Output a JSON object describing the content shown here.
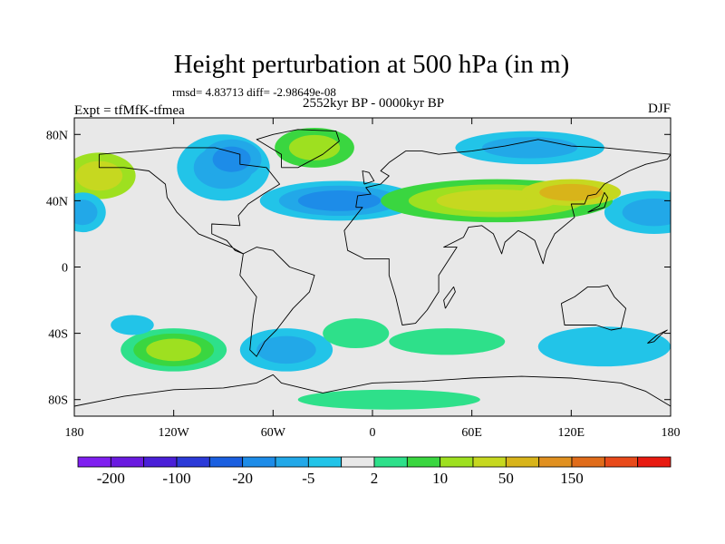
{
  "chart_data": {
    "type": "heatmap",
    "title": "Height perturbation at 500 hPa (in m)",
    "stats_line": "rmsd= 4.83713 diff= -2.98649e-08",
    "subtitle": "2552kyr BP - 0000kyr BP",
    "experiment": "Expt = tfMfK-tfmea",
    "season": "DJF",
    "xlim": [
      -180,
      180
    ],
    "ylim": [
      -90,
      90
    ],
    "x_ticks": [
      {
        "value": -180,
        "label": "180"
      },
      {
        "value": -120,
        "label": "120W"
      },
      {
        "value": -60,
        "label": "60W"
      },
      {
        "value": 0,
        "label": "0"
      },
      {
        "value": 60,
        "label": "60E"
      },
      {
        "value": 120,
        "label": "120E"
      },
      {
        "value": 180,
        "label": "180"
      }
    ],
    "y_ticks": [
      {
        "value": 80,
        "label": "80N"
      },
      {
        "value": 40,
        "label": "40N"
      },
      {
        "value": 0,
        "label": "0"
      },
      {
        "value": -40,
        "label": "40S"
      },
      {
        "value": -80,
        "label": "80S"
      }
    ],
    "colorbar": {
      "colors": [
        "#7f1ff0",
        "#6a1ae0",
        "#4a1fd8",
        "#2b3ad8",
        "#1a5fe0",
        "#1d8ce8",
        "#22a8e8",
        "#22c4e8",
        "#e8e8e8",
        "#2ee08a",
        "#3ad640",
        "#9ee020",
        "#c6d820",
        "#d8b41a",
        "#e09020",
        "#e06c1a",
        "#e84a1a",
        "#e81a10"
      ],
      "tick_labels": [
        {
          "index": 1,
          "label": "-200"
        },
        {
          "index": 3,
          "label": "-100"
        },
        {
          "index": 5,
          "label": "-20"
        },
        {
          "index": 7,
          "label": "-5"
        },
        {
          "index": 9,
          "label": "2"
        },
        {
          "index": 11,
          "label": "10"
        },
        {
          "index": 13,
          "label": "50"
        },
        {
          "index": 15,
          "label": "150"
        }
      ]
    },
    "field_anomalies": [
      {
        "name": "n-pacific-east",
        "lon": -165,
        "lat": 55,
        "rx": 22,
        "ry": 14,
        "levels": [
          11,
          12
        ]
      },
      {
        "name": "n-pacific-west-low",
        "lon": 170,
        "lat": 33,
        "rx": 30,
        "ry": 13,
        "levels": [
          7,
          6
        ]
      },
      {
        "name": "n-pacific-dateline-low",
        "lon": -175,
        "lat": 33,
        "rx": 14,
        "ry": 12,
        "levels": [
          7,
          6
        ]
      },
      {
        "name": "north-america-low",
        "lon": -90,
        "lat": 60,
        "rx": 28,
        "ry": 20,
        "levels": [
          7,
          6
        ]
      },
      {
        "name": "canada-low-core",
        "lon": -85,
        "lat": 65,
        "rx": 18,
        "ry": 12,
        "levels": [
          6,
          5
        ]
      },
      {
        "name": "greenland-high",
        "lon": -35,
        "lat": 72,
        "rx": 24,
        "ry": 12,
        "levels": [
          10,
          11
        ]
      },
      {
        "name": "atlantic-low",
        "lon": -20,
        "lat": 40,
        "rx": 48,
        "ry": 12,
        "levels": [
          7,
          6,
          5
        ]
      },
      {
        "name": "arctic-siberia-low",
        "lon": 95,
        "lat": 72,
        "rx": 45,
        "ry": 10,
        "levels": [
          7,
          6
        ]
      },
      {
        "name": "eurasia-high",
        "lon": 75,
        "lat": 40,
        "rx": 70,
        "ry": 13,
        "levels": [
          10,
          11,
          12
        ]
      },
      {
        "name": "asia-high-core",
        "lon": 120,
        "lat": 45,
        "rx": 30,
        "ry": 8,
        "levels": [
          12,
          13
        ]
      },
      {
        "name": "s-pacific-west-high",
        "lon": -120,
        "lat": -50,
        "rx": 32,
        "ry": 13,
        "levels": [
          9,
          10,
          11
        ]
      },
      {
        "name": "s-atlantic-low",
        "lon": -52,
        "lat": -50,
        "rx": 28,
        "ry": 13,
        "levels": [
          7,
          6
        ]
      },
      {
        "name": "s-atlantic-high",
        "lon": -10,
        "lat": -40,
        "rx": 20,
        "ry": 9,
        "levels": [
          9
        ]
      },
      {
        "name": "s-indian-high",
        "lon": 45,
        "lat": -45,
        "rx": 35,
        "ry": 8,
        "levels": [
          9
        ]
      },
      {
        "name": "s-indian-low",
        "lon": 140,
        "lat": -48,
        "rx": 40,
        "ry": 12,
        "levels": [
          7
        ]
      },
      {
        "name": "s-pacific-small-high",
        "lon": 10,
        "lat": -80,
        "rx": 55,
        "ry": 6,
        "levels": [
          9
        ]
      },
      {
        "name": "tropical-pacific-low",
        "lon": -145,
        "lat": -35,
        "rx": 13,
        "ry": 6,
        "levels": [
          7
        ]
      }
    ],
    "land_outlines": [
      {
        "name": "north-america",
        "points": [
          [
            -165,
            68
          ],
          [
            -140,
            70
          ],
          [
            -120,
            72
          ],
          [
            -95,
            72
          ],
          [
            -80,
            68
          ],
          [
            -80,
            62
          ],
          [
            -64,
            60
          ],
          [
            -56,
            50
          ],
          [
            -66,
            44
          ],
          [
            -75,
            38
          ],
          [
            -81,
            31
          ],
          [
            -80,
            25
          ],
          [
            -97,
            26
          ],
          [
            -97,
            20
          ],
          [
            -88,
            16
          ],
          [
            -83,
            10
          ],
          [
            -78,
            8
          ],
          [
            -85,
            12
          ],
          [
            -95,
            16
          ],
          [
            -105,
            20
          ],
          [
            -110,
            25
          ],
          [
            -118,
            33
          ],
          [
            -124,
            42
          ],
          [
            -125,
            50
          ],
          [
            -135,
            58
          ],
          [
            -150,
            60
          ],
          [
            -165,
            60
          ],
          [
            -165,
            68
          ]
        ]
      },
      {
        "name": "greenland",
        "points": [
          [
            -55,
            60
          ],
          [
            -45,
            60
          ],
          [
            -30,
            68
          ],
          [
            -20,
            76
          ],
          [
            -22,
            82
          ],
          [
            -45,
            83
          ],
          [
            -60,
            80
          ],
          [
            -70,
            77
          ],
          [
            -55,
            68
          ],
          [
            -55,
            60
          ]
        ]
      },
      {
        "name": "south-america",
        "points": [
          [
            -78,
            8
          ],
          [
            -70,
            12
          ],
          [
            -60,
            10
          ],
          [
            -50,
            0
          ],
          [
            -35,
            -5
          ],
          [
            -38,
            -15
          ],
          [
            -48,
            -25
          ],
          [
            -58,
            -38
          ],
          [
            -65,
            -45
          ],
          [
            -70,
            -54
          ],
          [
            -74,
            -50
          ],
          [
            -72,
            -30
          ],
          [
            -70,
            -18
          ],
          [
            -80,
            -5
          ],
          [
            -78,
            8
          ]
        ]
      },
      {
        "name": "eurasia-africa",
        "points": [
          [
            -10,
            36
          ],
          [
            -6,
            36
          ],
          [
            -17,
            22
          ],
          [
            -15,
            10
          ],
          [
            -5,
            5
          ],
          [
            10,
            5
          ],
          [
            10,
            -5
          ],
          [
            14,
            -18
          ],
          [
            18,
            -35
          ],
          [
            26,
            -34
          ],
          [
            33,
            -26
          ],
          [
            40,
            -15
          ],
          [
            40,
            -5
          ],
          [
            51,
            12
          ],
          [
            43,
            12
          ],
          [
            55,
            18
          ],
          [
            58,
            24
          ],
          [
            66,
            25
          ],
          [
            73,
            20
          ],
          [
            78,
            8
          ],
          [
            80,
            15
          ],
          [
            88,
            22
          ],
          [
            92,
            20
          ],
          [
            98,
            16
          ],
          [
            103,
            2
          ],
          [
            105,
            10
          ],
          [
            110,
            20
          ],
          [
            122,
            30
          ],
          [
            120,
            38
          ],
          [
            128,
            38
          ],
          [
            130,
            43
          ],
          [
            135,
            44
          ],
          [
            140,
            50
          ],
          [
            155,
            58
          ],
          [
            165,
            62
          ],
          [
            178,
            65
          ],
          [
            180,
            68
          ],
          [
            160,
            70
          ],
          [
            140,
            72
          ],
          [
            120,
            73
          ],
          [
            100,
            77
          ],
          [
            80,
            73
          ],
          [
            60,
            70
          ],
          [
            40,
            68
          ],
          [
            30,
            70
          ],
          [
            20,
            70
          ],
          [
            10,
            63
          ],
          [
            5,
            58
          ],
          [
            10,
            55
          ],
          [
            5,
            50
          ],
          [
            -4,
            48
          ],
          [
            -1,
            44
          ],
          [
            -9,
            43
          ],
          [
            -10,
            36
          ]
        ]
      },
      {
        "name": "australia",
        "points": [
          [
            114,
            -22
          ],
          [
            122,
            -18
          ],
          [
            130,
            -12
          ],
          [
            137,
            -12
          ],
          [
            142,
            -11
          ],
          [
            146,
            -18
          ],
          [
            153,
            -25
          ],
          [
            150,
            -37
          ],
          [
            144,
            -38
          ],
          [
            135,
            -35
          ],
          [
            116,
            -35
          ],
          [
            114,
            -22
          ]
        ]
      },
      {
        "name": "antarctica",
        "points": [
          [
            -180,
            -84
          ],
          [
            -150,
            -78
          ],
          [
            -120,
            -74
          ],
          [
            -90,
            -73
          ],
          [
            -70,
            -70
          ],
          [
            -60,
            -65
          ],
          [
            -55,
            -70
          ],
          [
            -30,
            -76
          ],
          [
            0,
            -70
          ],
          [
            30,
            -69
          ],
          [
            60,
            -67
          ],
          [
            90,
            -66
          ],
          [
            120,
            -67
          ],
          [
            150,
            -70
          ],
          [
            165,
            -75
          ],
          [
            180,
            -84
          ]
        ]
      },
      {
        "name": "british-isles",
        "points": [
          [
            -5,
            50
          ],
          [
            1,
            52
          ],
          [
            -2,
            57
          ],
          [
            -6,
            58
          ],
          [
            -5,
            50
          ]
        ]
      },
      {
        "name": "madagascar",
        "points": [
          [
            44,
            -25
          ],
          [
            50,
            -15
          ],
          [
            49,
            -12
          ],
          [
            43,
            -20
          ],
          [
            44,
            -25
          ]
        ]
      },
      {
        "name": "japan",
        "points": [
          [
            130,
            33
          ],
          [
            140,
            36
          ],
          [
            142,
            42
          ],
          [
            140,
            45
          ],
          [
            137,
            37
          ],
          [
            130,
            33
          ]
        ]
      },
      {
        "name": "new-zealand",
        "points": [
          [
            166,
            -46
          ],
          [
            172,
            -41
          ],
          [
            178,
            -38
          ],
          [
            174,
            -41
          ],
          [
            170,
            -45
          ],
          [
            166,
            -46
          ]
        ]
      }
    ]
  }
}
